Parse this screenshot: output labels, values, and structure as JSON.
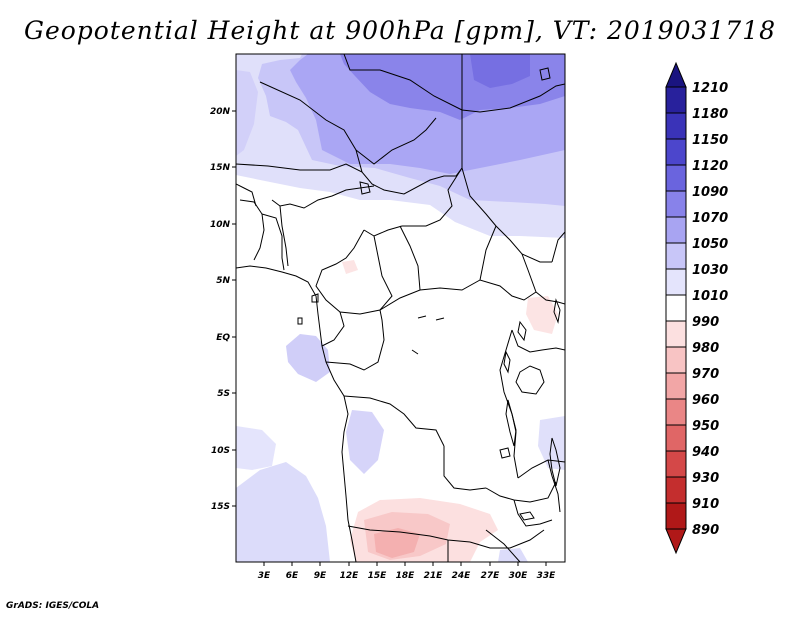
{
  "title": "Geopotential Height at 900hPa [gpm], VT: 2019031718",
  "credit": "GrADS: IGES/COLA",
  "map": {
    "lat_labels": [
      "20N",
      "15N",
      "10N",
      "5N",
      "EQ",
      "5S",
      "10S",
      "15S"
    ],
    "lon_labels": [
      "3E",
      "6E",
      "9E",
      "12E",
      "15E",
      "18E",
      "21E",
      "24E",
      "27E",
      "30E",
      "33E"
    ]
  },
  "colorbar": {
    "levels": [
      "1210",
      "1180",
      "1150",
      "1120",
      "1090",
      "1070",
      "1050",
      "1030",
      "1010",
      "990",
      "980",
      "970",
      "960",
      "950",
      "940",
      "930",
      "910",
      "890"
    ],
    "colors": [
      "#1a1480",
      "#28219c",
      "#3a33b8",
      "#4c46cc",
      "#6a64de",
      "#8882ea",
      "#a8a4f2",
      "#c8c6f8",
      "#e4e4fc",
      "#ffffff",
      "#fce0e0",
      "#f8c4c4",
      "#f2a6a6",
      "#ea8686",
      "#e06666",
      "#d44848",
      "#c42e2e",
      "#b01818"
    ]
  }
}
